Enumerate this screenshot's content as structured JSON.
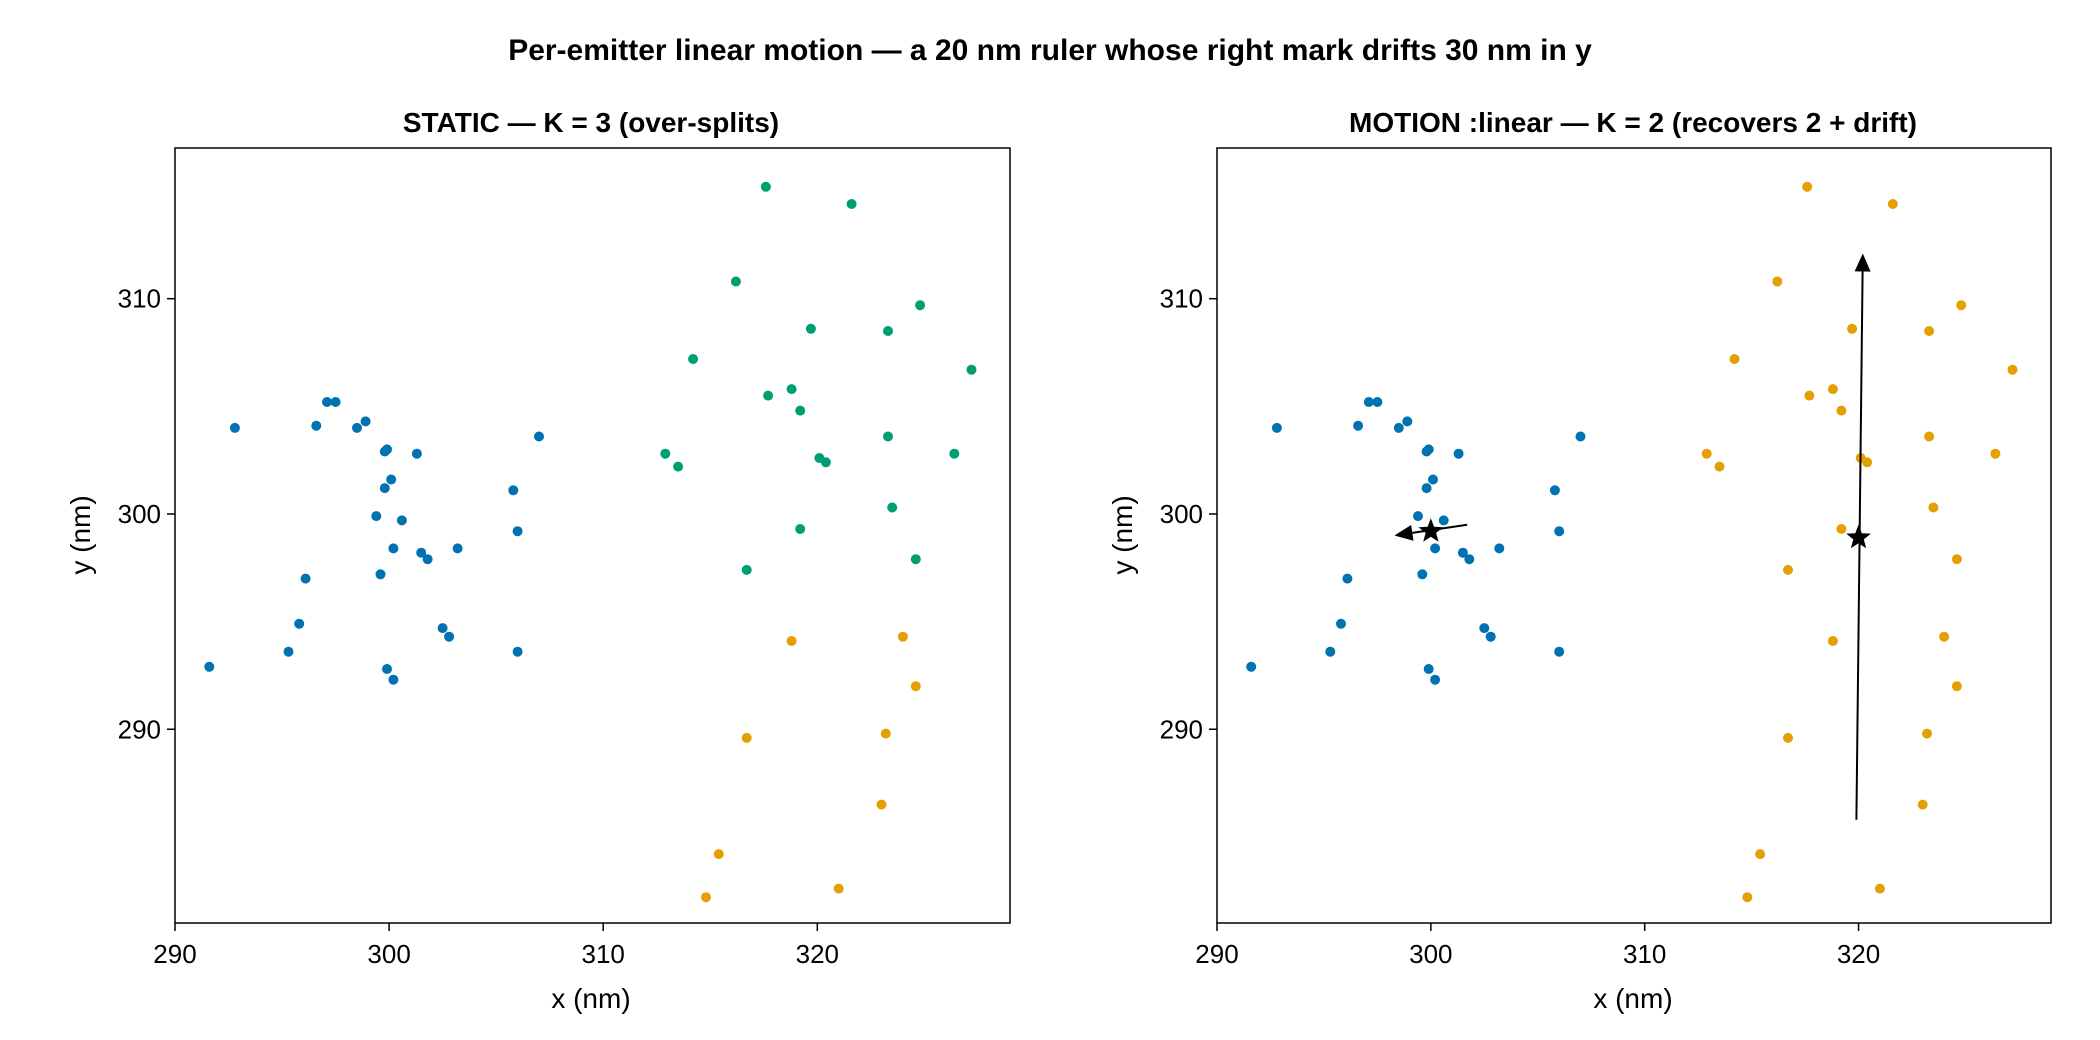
{
  "figure_title": "Per-emitter linear motion — a 20 nm ruler whose right mark drifts 30 nm in y",
  "colors": {
    "cluster_a": "#0072b2",
    "cluster_b": "#e69f00",
    "cluster_c": "#009e73",
    "motion": "#000000"
  },
  "chart_data": [
    {
      "type": "scatter",
      "title": "STATIC — K = 3 (over-splits)",
      "xlabel": "x (nm)",
      "ylabel": "y (nm)",
      "xlim": [
        290,
        329
      ],
      "ylim": [
        281,
        317
      ],
      "xticks": [
        290,
        300,
        310,
        320
      ],
      "yticks": [
        290,
        300,
        310
      ],
      "grid": false,
      "series": [
        {
          "color": "#0072b2",
          "points": [
            [
              291.6,
              292.9
            ],
            [
              292.8,
              304.0
            ],
            [
              295.3,
              293.6
            ],
            [
              295.8,
              294.9
            ],
            [
              296.1,
              297.0
            ],
            [
              296.6,
              304.1
            ],
            [
              297.1,
              305.2
            ],
            [
              297.5,
              305.2
            ],
            [
              298.5,
              304.0
            ],
            [
              298.9,
              304.3
            ],
            [
              299.4,
              299.9
            ],
            [
              299.6,
              297.2
            ],
            [
              299.8,
              302.9
            ],
            [
              299.8,
              301.2
            ],
            [
              299.9,
              303.0
            ],
            [
              299.9,
              292.8
            ],
            [
              300.1,
              301.6
            ],
            [
              300.2,
              298.4
            ],
            [
              300.2,
              292.3
            ],
            [
              300.6,
              299.7
            ],
            [
              301.3,
              302.8
            ],
            [
              301.5,
              298.2
            ],
            [
              301.8,
              297.9
            ],
            [
              302.5,
              294.7
            ],
            [
              302.8,
              294.3
            ],
            [
              303.2,
              298.4
            ],
            [
              305.8,
              301.1
            ],
            [
              306.0,
              299.2
            ],
            [
              306.0,
              293.6
            ],
            [
              307.0,
              303.6
            ]
          ]
        },
        {
          "color": "#009e73",
          "points": [
            [
              312.9,
              302.8
            ],
            [
              313.5,
              302.2
            ],
            [
              314.2,
              307.2
            ],
            [
              316.2,
              310.8
            ],
            [
              316.7,
              297.4
            ],
            [
              317.6,
              315.2
            ],
            [
              317.7,
              305.5
            ],
            [
              318.8,
              305.8
            ],
            [
              319.2,
              304.8
            ],
            [
              319.2,
              299.3
            ],
            [
              319.7,
              308.6
            ],
            [
              320.1,
              302.6
            ],
            [
              320.4,
              302.4
            ],
            [
              321.6,
              314.4
            ],
            [
              323.3,
              308.5
            ],
            [
              323.3,
              303.6
            ],
            [
              323.5,
              300.3
            ],
            [
              324.6,
              297.9
            ],
            [
              324.8,
              309.7
            ],
            [
              326.4,
              302.8
            ],
            [
              327.2,
              306.7
            ]
          ]
        },
        {
          "color": "#e69f00",
          "points": [
            [
              314.8,
              282.2
            ],
            [
              315.4,
              284.2
            ],
            [
              316.7,
              289.6
            ],
            [
              318.8,
              294.1
            ],
            [
              321.0,
              282.6
            ],
            [
              323.0,
              286.5
            ],
            [
              323.2,
              289.8
            ],
            [
              324.0,
              294.3
            ],
            [
              324.6,
              292.0
            ]
          ]
        }
      ]
    },
    {
      "type": "scatter",
      "title": "MOTION :linear — K = 2 (recovers 2 + drift)",
      "xlabel": "x (nm)",
      "ylabel": "y (nm)",
      "xlim": [
        290,
        329
      ],
      "ylim": [
        281,
        317
      ],
      "xticks": [
        290,
        300,
        310,
        320
      ],
      "yticks": [
        290,
        300,
        310
      ],
      "grid": false,
      "series": [
        {
          "color": "#0072b2",
          "points": [
            [
              291.6,
              292.9
            ],
            [
              292.8,
              304.0
            ],
            [
              295.3,
              293.6
            ],
            [
              295.8,
              294.9
            ],
            [
              296.1,
              297.0
            ],
            [
              296.6,
              304.1
            ],
            [
              297.1,
              305.2
            ],
            [
              297.5,
              305.2
            ],
            [
              298.5,
              304.0
            ],
            [
              298.9,
              304.3
            ],
            [
              299.4,
              299.9
            ],
            [
              299.6,
              297.2
            ],
            [
              299.8,
              302.9
            ],
            [
              299.8,
              301.2
            ],
            [
              299.9,
              303.0
            ],
            [
              299.9,
              292.8
            ],
            [
              300.1,
              301.6
            ],
            [
              300.2,
              298.4
            ],
            [
              300.2,
              292.3
            ],
            [
              300.6,
              299.7
            ],
            [
              301.3,
              302.8
            ],
            [
              301.5,
              298.2
            ],
            [
              301.8,
              297.9
            ],
            [
              302.5,
              294.7
            ],
            [
              302.8,
              294.3
            ],
            [
              303.2,
              298.4
            ],
            [
              305.8,
              301.1
            ],
            [
              306.0,
              299.2
            ],
            [
              306.0,
              293.6
            ],
            [
              307.0,
              303.6
            ]
          ]
        },
        {
          "color": "#e69f00",
          "points": [
            [
              312.9,
              302.8
            ],
            [
              313.5,
              302.2
            ],
            [
              314.2,
              307.2
            ],
            [
              316.2,
              310.8
            ],
            [
              316.7,
              297.4
            ],
            [
              317.6,
              315.2
            ],
            [
              317.7,
              305.5
            ],
            [
              318.8,
              305.8
            ],
            [
              319.2,
              304.8
            ],
            [
              319.2,
              299.3
            ],
            [
              319.7,
              308.6
            ],
            [
              320.1,
              302.6
            ],
            [
              320.4,
              302.4
            ],
            [
              321.6,
              314.4
            ],
            [
              323.3,
              308.5
            ],
            [
              323.3,
              303.6
            ],
            [
              323.5,
              300.3
            ],
            [
              324.6,
              297.9
            ],
            [
              324.8,
              309.7
            ],
            [
              326.4,
              302.8
            ],
            [
              327.2,
              306.7
            ],
            [
              314.8,
              282.2
            ],
            [
              315.4,
              284.2
            ],
            [
              316.7,
              289.6
            ],
            [
              318.8,
              294.1
            ],
            [
              321.0,
              282.6
            ],
            [
              323.0,
              286.5
            ],
            [
              323.2,
              289.8
            ],
            [
              324.0,
              294.3
            ],
            [
              324.6,
              292.0
            ]
          ]
        }
      ],
      "centers": [
        [
          300.0,
          299.2
        ],
        [
          320.0,
          298.9
        ]
      ],
      "drift_arrows": [
        {
          "from": [
            301.7,
            299.5
          ],
          "to": [
            298.3,
            299.0
          ]
        },
        {
          "from": [
            319.9,
            285.8
          ],
          "to": [
            320.2,
            312.1
          ]
        }
      ]
    }
  ]
}
